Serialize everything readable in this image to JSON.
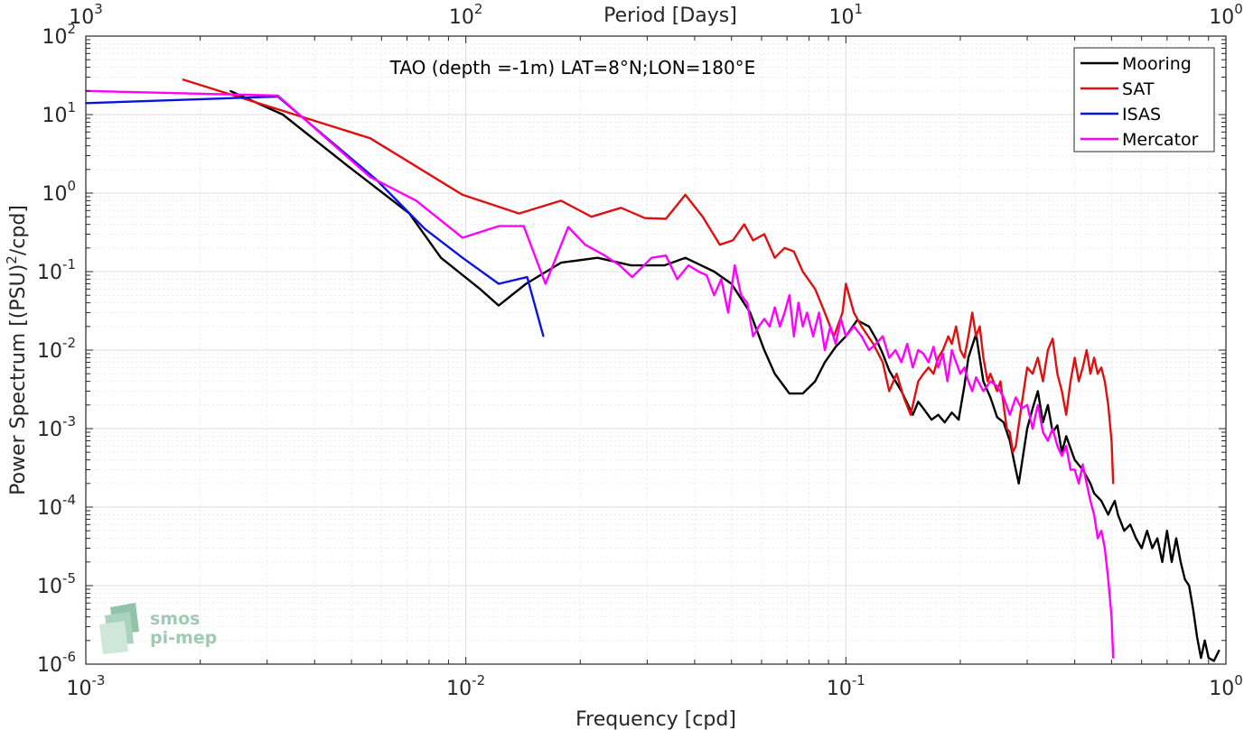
{
  "chart_data": {
    "type": "line",
    "title": "TAO (depth =-1m) LAT=8°N;LON=180°E",
    "xlabel": "Frequency [cpd]",
    "ylabel": "Power Spectrum [(PSU)",
    "ylabel_sup": "2",
    "ylabel_tail": "/cpd]",
    "top_xlabel": "Period [Days]",
    "x_scale": "log",
    "y_scale": "log",
    "xlim": [
      0.001,
      1
    ],
    "ylim": [
      1e-06,
      100
    ],
    "grid": true,
    "legend_position": "top-right",
    "x_ticks": [
      {
        "base": "10",
        "exp": "-3"
      },
      {
        "base": "10",
        "exp": "-2"
      },
      {
        "base": "10",
        "exp": "-1"
      },
      {
        "base": "10",
        "exp": "0"
      }
    ],
    "top_ticks": [
      {
        "base": "10",
        "exp": "3"
      },
      {
        "base": "10",
        "exp": "2"
      },
      {
        "base": "10",
        "exp": "1"
      },
      {
        "base": "10",
        "exp": "0"
      }
    ],
    "y_ticks": [
      {
        "base": "10",
        "exp": "-6"
      },
      {
        "base": "10",
        "exp": "-5"
      },
      {
        "base": "10",
        "exp": "-4"
      },
      {
        "base": "10",
        "exp": "-3"
      },
      {
        "base": "10",
        "exp": "-2"
      },
      {
        "base": "10",
        "exp": "-1"
      },
      {
        "base": "10",
        "exp": "0"
      },
      {
        "base": "10",
        "exp": "1"
      },
      {
        "base": "10",
        "exp": "2"
      }
    ],
    "series": [
      {
        "name": "Mooring",
        "color": "#000000",
        "points": [
          [
            0.0024,
            20
          ],
          [
            0.0033,
            10
          ],
          [
            0.0049,
            2.2
          ],
          [
            0.0071,
            0.55
          ],
          [
            0.0086,
            0.15
          ],
          [
            0.0109,
            0.06
          ],
          [
            0.0122,
            0.037
          ],
          [
            0.0144,
            0.07
          ],
          [
            0.0178,
            0.13
          ],
          [
            0.0222,
            0.15
          ],
          [
            0.0272,
            0.12
          ],
          [
            0.0333,
            0.12
          ],
          [
            0.0378,
            0.15
          ],
          [
            0.045,
            0.1
          ],
          [
            0.05,
            0.07
          ],
          [
            0.056,
            0.03
          ],
          [
            0.061,
            0.01
          ],
          [
            0.065,
            0.005
          ],
          [
            0.071,
            0.0028
          ],
          [
            0.077,
            0.0028
          ],
          [
            0.083,
            0.004
          ],
          [
            0.088,
            0.007
          ],
          [
            0.094,
            0.011
          ],
          [
            0.1,
            0.015
          ],
          [
            0.107,
            0.024
          ],
          [
            0.115,
            0.02
          ],
          [
            0.12,
            0.014
          ],
          [
            0.125,
            0.009
          ],
          [
            0.13,
            0.0055
          ],
          [
            0.14,
            0.003
          ],
          [
            0.15,
            0.0015
          ],
          [
            0.155,
            0.0022
          ],
          [
            0.16,
            0.0018
          ],
          [
            0.168,
            0.0013
          ],
          [
            0.175,
            0.0015
          ],
          [
            0.182,
            0.0012
          ],
          [
            0.19,
            0.0016
          ],
          [
            0.198,
            0.0013
          ],
          [
            0.205,
            0.0035
          ],
          [
            0.21,
            0.008
          ],
          [
            0.22,
            0.016
          ],
          [
            0.23,
            0.004
          ],
          [
            0.24,
            0.0025
          ],
          [
            0.25,
            0.0014
          ],
          [
            0.26,
            0.0012
          ],
          [
            0.27,
            0.0007
          ],
          [
            0.28,
            0.0003
          ],
          [
            0.285,
            0.0002
          ],
          [
            0.3,
            0.001
          ],
          [
            0.31,
            0.0018
          ],
          [
            0.32,
            0.003
          ],
          [
            0.33,
            0.0012
          ],
          [
            0.34,
            0.002
          ],
          [
            0.35,
            0.0009
          ],
          [
            0.36,
            0.0011
          ],
          [
            0.37,
            0.0005
          ],
          [
            0.38,
            0.0008
          ],
          [
            0.4,
            0.0004
          ],
          [
            0.42,
            0.0003
          ],
          [
            0.44,
            0.0002
          ],
          [
            0.45,
            0.00015
          ],
          [
            0.47,
            0.00012
          ],
          [
            0.49,
            8e-05
          ],
          [
            0.5,
            0.0001
          ],
          [
            0.51,
            0.00012
          ],
          [
            0.52,
            8e-05
          ],
          [
            0.54,
            5e-05
          ],
          [
            0.56,
            6e-05
          ],
          [
            0.58,
            4e-05
          ],
          [
            0.6,
            3e-05
          ],
          [
            0.62,
            5e-05
          ],
          [
            0.64,
            3e-05
          ],
          [
            0.66,
            4e-05
          ],
          [
            0.68,
            2e-05
          ],
          [
            0.7,
            5e-05
          ],
          [
            0.72,
            2e-05
          ],
          [
            0.74,
            4e-05
          ],
          [
            0.76,
            2e-05
          ],
          [
            0.78,
            1.2e-05
          ],
          [
            0.8,
            1e-05
          ],
          [
            0.82,
            5e-06
          ],
          [
            0.84,
            2.2e-06
          ],
          [
            0.86,
            1.2e-06
          ],
          [
            0.88,
            2e-06
          ],
          [
            0.9,
            1.2e-06
          ],
          [
            0.93,
            1.1e-06
          ],
          [
            0.96,
            1.5e-06
          ]
        ]
      },
      {
        "name": "SAT",
        "color": "#e01010",
        "points": [
          [
            0.0018,
            28
          ],
          [
            0.0056,
            5
          ],
          [
            0.0098,
            0.95
          ],
          [
            0.0138,
            0.55
          ],
          [
            0.0178,
            0.8
          ],
          [
            0.0214,
            0.5
          ],
          [
            0.0256,
            0.65
          ],
          [
            0.0296,
            0.48
          ],
          [
            0.0336,
            0.47
          ],
          [
            0.0378,
            0.95
          ],
          [
            0.042,
            0.5
          ],
          [
            0.0466,
            0.22
          ],
          [
            0.0504,
            0.25
          ],
          [
            0.054,
            0.4
          ],
          [
            0.057,
            0.25
          ],
          [
            0.061,
            0.3
          ],
          [
            0.065,
            0.15
          ],
          [
            0.069,
            0.2
          ],
          [
            0.073,
            0.18
          ],
          [
            0.077,
            0.1
          ],
          [
            0.083,
            0.06
          ],
          [
            0.088,
            0.03
          ],
          [
            0.093,
            0.015
          ],
          [
            0.098,
            0.03
          ],
          [
            0.1,
            0.07
          ],
          [
            0.105,
            0.03
          ],
          [
            0.11,
            0.02
          ],
          [
            0.118,
            0.012
          ],
          [
            0.125,
            0.007
          ],
          [
            0.13,
            0.003
          ],
          [
            0.136,
            0.005
          ],
          [
            0.142,
            0.0025
          ],
          [
            0.148,
            0.0015
          ],
          [
            0.155,
            0.004
          ],
          [
            0.16,
            0.005
          ],
          [
            0.165,
            0.006
          ],
          [
            0.17,
            0.005
          ],
          [
            0.175,
            0.008
          ],
          [
            0.18,
            0.01
          ],
          [
            0.186,
            0.015
          ],
          [
            0.19,
            0.012
          ],
          [
            0.195,
            0.02
          ],
          [
            0.2,
            0.01
          ],
          [
            0.205,
            0.008
          ],
          [
            0.21,
            0.015
          ],
          [
            0.215,
            0.03
          ],
          [
            0.22,
            0.015
          ],
          [
            0.225,
            0.02
          ],
          [
            0.23,
            0.008
          ],
          [
            0.236,
            0.004
          ],
          [
            0.24,
            0.005
          ],
          [
            0.25,
            0.003
          ],
          [
            0.255,
            0.004
          ],
          [
            0.26,
            0.002
          ],
          [
            0.265,
            0.001
          ],
          [
            0.27,
            0.0009
          ],
          [
            0.275,
            0.0005
          ],
          [
            0.28,
            0.0006
          ],
          [
            0.29,
            0.002
          ],
          [
            0.3,
            0.006
          ],
          [
            0.31,
            0.005
          ],
          [
            0.32,
            0.008
          ],
          [
            0.33,
            0.004
          ],
          [
            0.34,
            0.01
          ],
          [
            0.35,
            0.014
          ],
          [
            0.36,
            0.005
          ],
          [
            0.37,
            0.003
          ],
          [
            0.38,
            0.0015
          ],
          [
            0.39,
            0.004
          ],
          [
            0.4,
            0.008
          ],
          [
            0.41,
            0.004
          ],
          [
            0.42,
            0.006
          ],
          [
            0.43,
            0.01
          ],
          [
            0.44,
            0.005
          ],
          [
            0.45,
            0.008
          ],
          [
            0.46,
            0.005
          ],
          [
            0.47,
            0.006
          ],
          [
            0.48,
            0.004
          ],
          [
            0.49,
            0.002
          ],
          [
            0.5,
            0.0007
          ],
          [
            0.505,
            0.0002
          ]
        ]
      },
      {
        "name": "ISAS",
        "color": "#0a14e0",
        "points": [
          [
            0.001,
            14
          ],
          [
            0.0032,
            17
          ],
          [
            0.0058,
            1.5
          ],
          [
            0.0078,
            0.35
          ],
          [
            0.0098,
            0.15
          ],
          [
            0.0122,
            0.07
          ],
          [
            0.0145,
            0.085
          ],
          [
            0.016,
            0.015
          ]
        ]
      },
      {
        "name": "Mercator",
        "color": "#ff00ff",
        "points": [
          [
            0.001,
            20
          ],
          [
            0.0032,
            17.5
          ],
          [
            0.0056,
            1.6
          ],
          [
            0.0074,
            0.8
          ],
          [
            0.0098,
            0.27
          ],
          [
            0.0122,
            0.38
          ],
          [
            0.0142,
            0.38
          ],
          [
            0.0162,
            0.07
          ],
          [
            0.0186,
            0.37
          ],
          [
            0.0206,
            0.22
          ],
          [
            0.0232,
            0.16
          ],
          [
            0.0254,
            0.12
          ],
          [
            0.0274,
            0.085
          ],
          [
            0.0308,
            0.15
          ],
          [
            0.0336,
            0.16
          ],
          [
            0.036,
            0.08
          ],
          [
            0.0385,
            0.12
          ],
          [
            0.041,
            0.1
          ],
          [
            0.043,
            0.09
          ],
          [
            0.045,
            0.05
          ],
          [
            0.047,
            0.08
          ],
          [
            0.049,
            0.03
          ],
          [
            0.051,
            0.12
          ],
          [
            0.053,
            0.05
          ],
          [
            0.055,
            0.04
          ],
          [
            0.057,
            0.015
          ],
          [
            0.059,
            0.02
          ],
          [
            0.061,
            0.025
          ],
          [
            0.063,
            0.02
          ],
          [
            0.065,
            0.035
          ],
          [
            0.067,
            0.02
          ],
          [
            0.069,
            0.03
          ],
          [
            0.071,
            0.05
          ],
          [
            0.073,
            0.015
          ],
          [
            0.075,
            0.04
          ],
          [
            0.077,
            0.02
          ],
          [
            0.079,
            0.03
          ],
          [
            0.082,
            0.015
          ],
          [
            0.085,
            0.03
          ],
          [
            0.088,
            0.01
          ],
          [
            0.091,
            0.02
          ],
          [
            0.094,
            0.012
          ],
          [
            0.097,
            0.025
          ],
          [
            0.1,
            0.015
          ],
          [
            0.105,
            0.02
          ],
          [
            0.11,
            0.015
          ],
          [
            0.115,
            0.01
          ],
          [
            0.12,
            0.012
          ],
          [
            0.125,
            0.015
          ],
          [
            0.13,
            0.008
          ],
          [
            0.135,
            0.01
          ],
          [
            0.14,
            0.007
          ],
          [
            0.145,
            0.012
          ],
          [
            0.15,
            0.006
          ],
          [
            0.155,
            0.01
          ],
          [
            0.16,
            0.009
          ],
          [
            0.165,
            0.007
          ],
          [
            0.17,
            0.011
          ],
          [
            0.175,
            0.006
          ],
          [
            0.18,
            0.009
          ],
          [
            0.185,
            0.004
          ],
          [
            0.19,
            0.01
          ],
          [
            0.195,
            0.007
          ],
          [
            0.2,
            0.005
          ],
          [
            0.205,
            0.006
          ],
          [
            0.21,
            0.004
          ],
          [
            0.215,
            0.003
          ],
          [
            0.22,
            0.0045
          ],
          [
            0.23,
            0.003
          ],
          [
            0.24,
            0.004
          ],
          [
            0.25,
            0.0035
          ],
          [
            0.26,
            0.0025
          ],
          [
            0.27,
            0.0015
          ],
          [
            0.28,
            0.0025
          ],
          [
            0.29,
            0.0018
          ],
          [
            0.3,
            0.002
          ],
          [
            0.31,
            0.001
          ],
          [
            0.32,
            0.002
          ],
          [
            0.33,
            0.0009
          ],
          [
            0.34,
            0.0007
          ],
          [
            0.35,
            0.001
          ],
          [
            0.36,
            0.0006
          ],
          [
            0.37,
            0.00045
          ],
          [
            0.38,
            0.0006
          ],
          [
            0.39,
            0.0003
          ],
          [
            0.4,
            0.0003
          ],
          [
            0.41,
            0.0002
          ],
          [
            0.42,
            0.00035
          ],
          [
            0.43,
            0.0002
          ],
          [
            0.44,
            0.00012
          ],
          [
            0.45,
            8e-05
          ],
          [
            0.46,
            4e-05
          ],
          [
            0.47,
            5e-05
          ],
          [
            0.48,
            3e-05
          ],
          [
            0.49,
            1.2e-05
          ],
          [
            0.5,
            4e-06
          ],
          [
            0.505,
            1.2e-06
          ]
        ]
      }
    ],
    "logo": {
      "line1": "smos",
      "line2": "pi-mep",
      "color": "#8fc2a8"
    }
  }
}
